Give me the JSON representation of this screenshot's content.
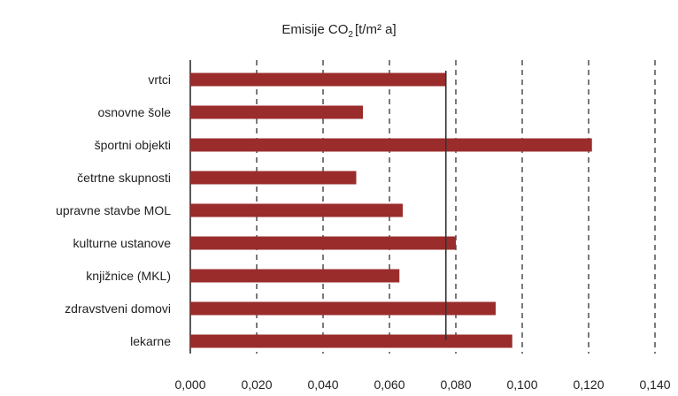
{
  "chart_data": {
    "type": "bar",
    "orientation": "horizontal",
    "title": "Emisije CO",
    "title_subscript": "2",
    "title_unit": "[t/m² a]",
    "categories": [
      "vrtci",
      "osnovne šole",
      "športni objekti",
      "četrtne skupnosti",
      "upravne stavbe MOL",
      "kulturne ustanove",
      "knjižnice (MKL)",
      "zdravstveni domovi",
      "lekarne"
    ],
    "values": [
      0.077,
      0.052,
      0.121,
      0.05,
      0.064,
      0.08,
      0.063,
      0.092,
      0.097
    ],
    "xlim": [
      0,
      0.14
    ],
    "xticks": [
      "0,000",
      "0,020",
      "0,040",
      "0,060",
      "0,080",
      "0,100",
      "0,120",
      "0,140"
    ],
    "reference_line": 0.077,
    "grid": "vertical dashed",
    "legend": "none",
    "colors": {
      "bar": "#9b2c2c",
      "grid": "#222222",
      "axis": "#222222"
    }
  }
}
